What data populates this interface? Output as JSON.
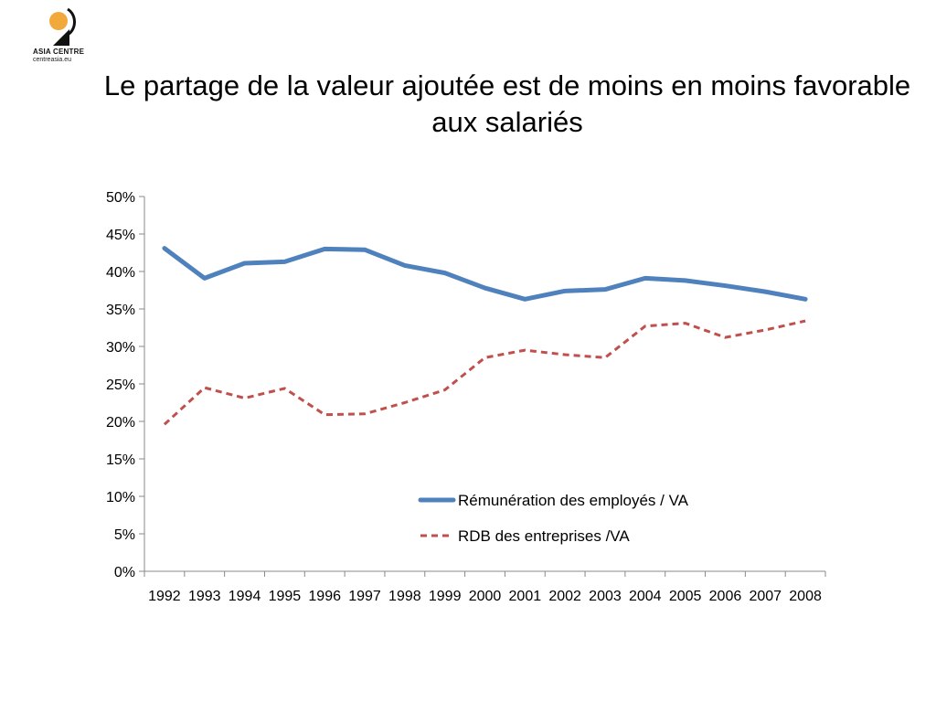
{
  "logo": {
    "name": "ASIA CENTRE",
    "url": "centreasia.eu"
  },
  "chart_data": {
    "type": "line",
    "title": "Le partage de la valeur ajoutée est de moins en moins favorable aux salariés",
    "xlabel": "",
    "ylabel": "",
    "ylim": [
      0,
      50
    ],
    "y_ticks": [
      "0%",
      "5%",
      "10%",
      "15%",
      "20%",
      "25%",
      "30%",
      "35%",
      "40%",
      "45%",
      "50%"
    ],
    "categories": [
      "1992",
      "1993",
      "1994",
      "1995",
      "1996",
      "1997",
      "1998",
      "1999",
      "2000",
      "2001",
      "2002",
      "2003",
      "2004",
      "2005",
      "2006",
      "2007",
      "2008"
    ],
    "series": [
      {
        "name": "Rémunération des employés / VA",
        "style": "solid",
        "color": "#4F81BD",
        "values": [
          43.1,
          39.1,
          41.1,
          41.3,
          43.0,
          42.9,
          40.8,
          39.8,
          37.8,
          36.3,
          37.4,
          37.6,
          39.1,
          38.8,
          38.1,
          37.3,
          36.3
        ]
      },
      {
        "name": "RDB des entreprises /VA",
        "style": "dashed",
        "color": "#C0504D",
        "values": [
          19.6,
          24.5,
          23.1,
          24.4,
          20.9,
          21.0,
          22.5,
          24.2,
          28.5,
          29.5,
          28.9,
          28.5,
          32.7,
          33.1,
          31.2,
          32.2,
          33.4
        ]
      }
    ],
    "grid": false,
    "legend": "inside-bottom-right"
  }
}
